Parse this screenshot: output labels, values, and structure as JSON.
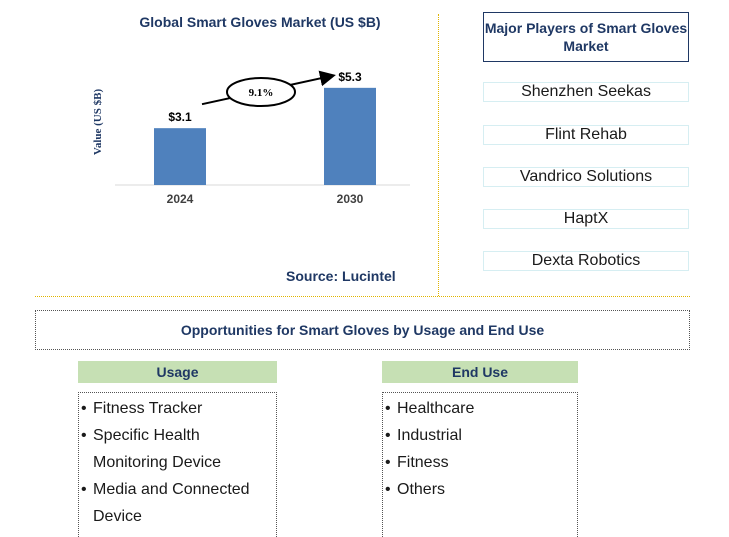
{
  "chart_data": {
    "type": "bar",
    "title": "Global Smart Gloves Market (US $B)",
    "ylabel": "Value (US $B)",
    "categories": [
      "2024",
      "2030"
    ],
    "values": [
      3.1,
      5.3
    ],
    "value_labels": [
      "$3.1",
      "$5.3"
    ],
    "ylim": [
      0,
      6
    ],
    "growth_label": "9.1%",
    "bar_color": "#4f81bd",
    "source": "Source: Lucintel"
  },
  "players": {
    "title": "Major Players of Smart Gloves Market",
    "items": [
      "Shenzhen Seekas",
      "Flint Rehab",
      "Vandrico Solutions",
      "HaptX",
      "Dexta Robotics"
    ]
  },
  "opportunities": {
    "title": "Opportunities for Smart Gloves by Usage and End Use",
    "usage": {
      "header": "Usage",
      "items": [
        "Fitness Tracker",
        "Specific Health Monitoring Device",
        "Media and Connected Device"
      ]
    },
    "end_use": {
      "header": "End Use",
      "items": [
        "Healthcare",
        "Industrial",
        "Fitness",
        "Others"
      ]
    }
  },
  "colors": {
    "navy": "#1f3864",
    "bar": "#4f81bd",
    "header_green": "#c6e0b4",
    "divider_gold": "#e0b400"
  }
}
